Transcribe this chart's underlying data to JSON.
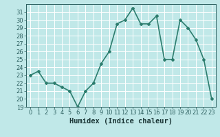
{
  "x": [
    0,
    1,
    2,
    3,
    4,
    5,
    6,
    7,
    8,
    9,
    10,
    11,
    12,
    13,
    14,
    15,
    16,
    17,
    18,
    19,
    20,
    21,
    22,
    23
  ],
  "y": [
    23,
    23.5,
    22,
    22,
    21.5,
    21,
    19,
    21,
    22,
    24.5,
    26,
    29.5,
    30,
    31.5,
    29.5,
    29.5,
    30.5,
    25,
    25,
    30,
    29,
    27.5,
    25,
    20
  ],
  "line_color": "#2d7d6e",
  "marker": "D",
  "marker_size": 2,
  "bg_color": "#c0e8e8",
  "grid_color": "#ffffff",
  "xlabel": "Humidex (Indice chaleur)",
  "xlim": [
    -0.5,
    23.5
  ],
  "ylim": [
    19,
    32
  ],
  "yticks": [
    19,
    20,
    21,
    22,
    23,
    24,
    25,
    26,
    27,
    28,
    29,
    30,
    31
  ],
  "xticks": [
    0,
    1,
    2,
    3,
    4,
    5,
    6,
    7,
    8,
    9,
    10,
    11,
    12,
    13,
    14,
    15,
    16,
    17,
    18,
    19,
    20,
    21,
    22,
    23
  ],
  "tick_label_fontsize": 6,
  "xlabel_fontsize": 7.5,
  "line_width": 1.2,
  "tick_color": "#2d6060",
  "label_color": "#1a3535"
}
